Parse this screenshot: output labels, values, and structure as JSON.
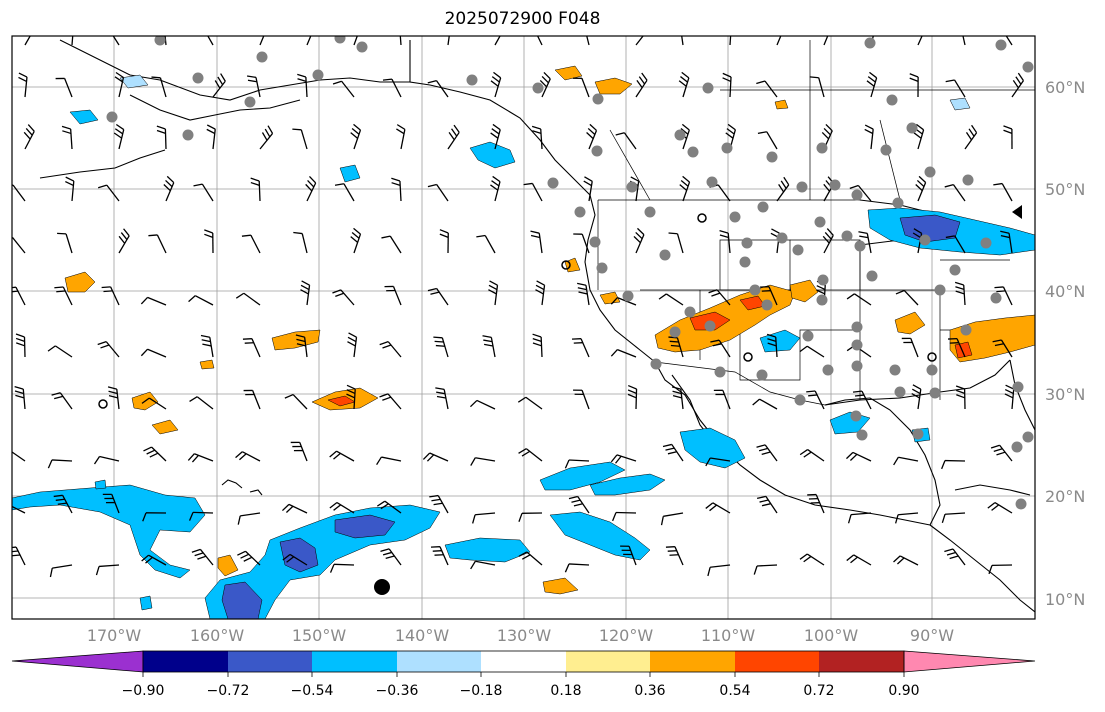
{
  "title": "2025072900 F048",
  "lat_labels": [
    "60°N",
    "50°N",
    "40°N",
    "30°N",
    "20°N",
    "10°N"
  ],
  "lon_labels": [
    "170°W",
    "160°W",
    "150°W",
    "140°W",
    "130°W",
    "120°W",
    "110°W",
    "100°W",
    "90°W"
  ],
  "colorbar": {
    "levels": [
      "−0.90",
      "−0.72",
      "−0.54",
      "−0.36",
      "−0.18",
      "0.18",
      "0.36",
      "0.54",
      "0.72",
      "0.90"
    ],
    "colors": [
      "#9b30d0",
      "#00008b",
      "#3a58c8",
      "#00bfff",
      "#aee0ff",
      "#ffffff",
      "#ffee90",
      "#ffa500",
      "#ff4500",
      "#b22222",
      "#ff88b0"
    ]
  },
  "field_colors": {
    "neg_light": "#aee0ff",
    "neg_mid": "#00bfff",
    "neg_strong": "#3a58c8",
    "neg_max": "#00008b",
    "pos_light": "#ffee90",
    "pos_mid": "#ffa500",
    "pos_strong": "#ff4500",
    "station_dot": "#808080",
    "grid": "#9e9e9e"
  }
}
